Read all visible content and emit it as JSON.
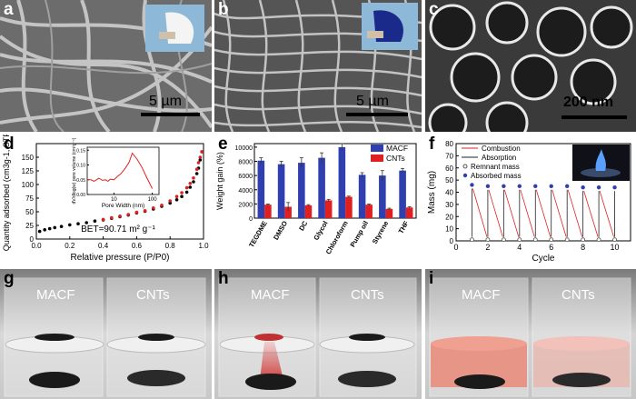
{
  "panels": {
    "a": {
      "label": "a",
      "scale_bar": "5 µm"
    },
    "b": {
      "label": "b",
      "scale_bar": "5 µm"
    },
    "c": {
      "label": "c",
      "scale_bar": "200 nm"
    },
    "d": {
      "label": "d"
    },
    "e": {
      "label": "e"
    },
    "f": {
      "label": "f"
    },
    "g": {
      "label": "g",
      "left_vial": "MACF",
      "right_vial": "CNTs"
    },
    "h": {
      "label": "h",
      "left_vial": "MACF",
      "right_vial": "CNTs"
    },
    "i": {
      "label": "i",
      "left_vial": "MACF",
      "right_vial": "CNTs"
    }
  },
  "chart_data": [
    {
      "panel": "d",
      "type": "scatter",
      "title": "",
      "xlabel": "Relative pressure (P/P0)",
      "ylabel": "Quantity adsorbed (cm3g-1, STP",
      "xlim": [
        0,
        1.0
      ],
      "ylim": [
        0,
        175
      ],
      "xticks": [
        "0.0",
        "0.2",
        "0.4",
        "0.6",
        "0.8",
        "1.0"
      ],
      "yticks": [
        "0",
        "25",
        "50",
        "75",
        "100",
        "125",
        "150"
      ],
      "annotation": "BET=90.71 m² g⁻¹",
      "series": [
        {
          "marker_color": "#000000",
          "x": [
            0.02,
            0.05,
            0.08,
            0.11,
            0.15,
            0.2,
            0.25,
            0.3,
            0.35,
            0.4,
            0.45,
            0.5,
            0.55,
            0.6,
            0.65,
            0.7,
            0.75,
            0.8,
            0.84,
            0.87,
            0.9,
            0.92,
            0.94,
            0.96,
            0.97,
            0.98,
            0.99
          ],
          "y": [
            14,
            17,
            19,
            21,
            23,
            26,
            28,
            30,
            33,
            35,
            38,
            41,
            44,
            48,
            51,
            55,
            60,
            66,
            72,
            78,
            86,
            95,
            105,
            120,
            130,
            145,
            160
          ]
        },
        {
          "marker_color": "#e02020",
          "x": [
            0.99,
            0.98,
            0.97,
            0.96,
            0.94,
            0.92,
            0.9,
            0.87,
            0.84,
            0.8,
            0.75,
            0.7,
            0.65,
            0.6,
            0.55,
            0.5,
            0.45,
            0.4
          ],
          "y": [
            160,
            150,
            140,
            128,
            112,
            102,
            94,
            85,
            78,
            70,
            62,
            57,
            52,
            49,
            45,
            42,
            39,
            36
          ]
        }
      ],
      "inset": {
        "type": "line",
        "xlabel": "Pore Width (nm)",
        "ylabel": "dV/dlog(w) pore volume (cm³g⁻¹)",
        "xscale": "log",
        "xlim": [
          2,
          150
        ],
        "ylim": [
          0,
          0.16
        ],
        "xticks": [
          "10",
          "100"
        ],
        "yticks": [
          "0.00",
          "0.05",
          "0.10",
          "0.15"
        ],
        "x": [
          2,
          2.5,
          3,
          3.5,
          4,
          5,
          6,
          7,
          8,
          10,
          12,
          15,
          20,
          25,
          30,
          40,
          55,
          70,
          100
        ],
        "y": [
          0.05,
          0.05,
          0.045,
          0.05,
          0.055,
          0.048,
          0.05,
          0.045,
          0.052,
          0.05,
          0.06,
          0.07,
          0.09,
          0.11,
          0.14,
          0.12,
          0.09,
          0.06,
          0.02
        ]
      }
    },
    {
      "panel": "e",
      "type": "bar",
      "title": "",
      "xlabel": "",
      "ylabel": "Weight gain (%)",
      "ylim": [
        0,
        10500
      ],
      "yticks": [
        "0",
        "2000",
        "4000",
        "6000",
        "8000",
        "10000"
      ],
      "categories": [
        "TEGDME",
        "DMSO",
        "DC",
        "Glycol",
        "Chloroform",
        "Pump oil",
        "Styrene",
        "THF"
      ],
      "legend": "top-right",
      "series": [
        {
          "name": "MACF",
          "color": "#2f3fb0",
          "values": [
            8100,
            7600,
            7800,
            8500,
            10000,
            6100,
            6000,
            6700
          ],
          "errors": [
            400,
            400,
            700,
            700,
            500,
            300,
            700,
            300
          ]
        },
        {
          "name": "CNTs",
          "color": "#e02020",
          "values": [
            1900,
            1600,
            1800,
            2500,
            3000,
            1900,
            1300,
            1500
          ],
          "errors": [
            100,
            600,
            100,
            150,
            100,
            100,
            100,
            100
          ]
        }
      ]
    },
    {
      "panel": "f",
      "type": "scatter",
      "title": "",
      "xlabel": "Cycle",
      "ylabel": "Mass (mg)",
      "xlim": [
        0,
        11
      ],
      "ylim": [
        0,
        80
      ],
      "xticks": [
        "0",
        "2",
        "4",
        "6",
        "8",
        "10"
      ],
      "yticks": [
        "0",
        "10",
        "20",
        "30",
        "40",
        "50",
        "60",
        "70",
        "80"
      ],
      "legend_entries": [
        "Combustion",
        "Absorption",
        "Remnant mass",
        "Absorbed mass"
      ],
      "series": [
        {
          "name": "Remnant mass",
          "x": [
            1,
            2,
            3,
            4,
            5,
            6,
            7,
            8,
            9,
            10
          ],
          "y": [
            1,
            1,
            1,
            1,
            1,
            1,
            1,
            1,
            1,
            1
          ]
        },
        {
          "name": "Absorbed mass",
          "x": [
            1,
            2,
            3,
            4,
            5,
            6,
            7,
            8,
            9,
            10
          ],
          "y": [
            46,
            45,
            45,
            45,
            45,
            45,
            45,
            44,
            44,
            44
          ]
        }
      ]
    }
  ]
}
